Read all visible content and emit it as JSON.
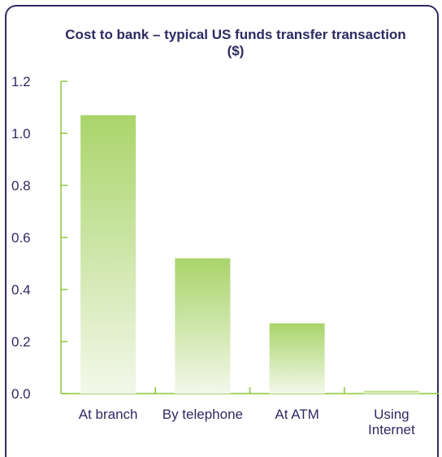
{
  "chart_data": {
    "type": "bar",
    "title": "Cost to bank – typical US funds transfer transaction ($)",
    "categories": [
      [
        "At branch"
      ],
      [
        "By telephone"
      ],
      [
        "At ATM"
      ],
      [
        "Using",
        "Internet"
      ]
    ],
    "values": [
      1.07,
      0.52,
      0.27,
      0.01
    ],
    "ylim": [
      0,
      1.2
    ],
    "yticks": [
      "0.0",
      "0.2",
      "0.4",
      "0.6",
      "0.8",
      "1.0",
      "1.2"
    ],
    "grid": false,
    "colors": {
      "bar_top": "#a9d46a",
      "bar_bottom": "#f3f8ea",
      "axis": "#8cc63f",
      "text": "#2e2a63"
    }
  }
}
